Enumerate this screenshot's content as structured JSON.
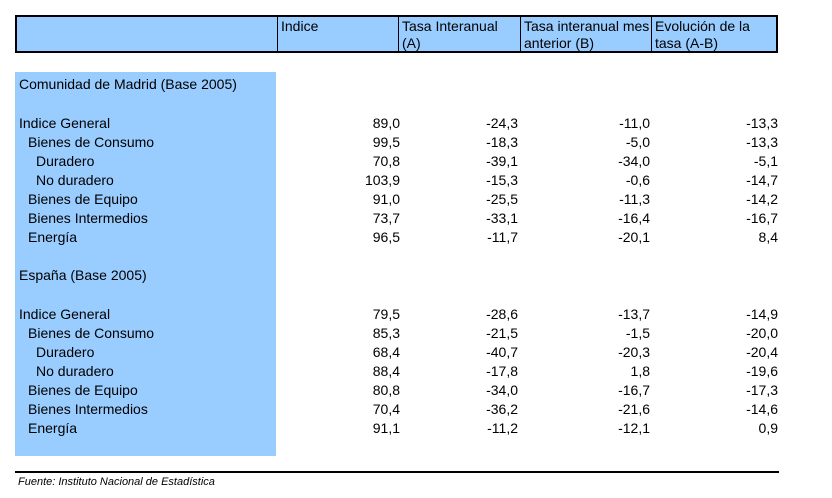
{
  "header": {
    "col_indice": "Indice",
    "col_a": "Tasa Interanual (A)",
    "col_b": "Tasa interanual mes anterior (B)",
    "col_ab": "Evolución de la tasa (A-B)"
  },
  "madrid": {
    "title": "Comunidad de Madrid (Base 2005)",
    "rows": [
      {
        "label": "Indice General",
        "indice": "89,0",
        "a": "-24,3",
        "b": "-11,0",
        "ab": "-13,3"
      },
      {
        "label": "Bienes de Consumo",
        "indice": "99,5",
        "a": "-18,3",
        "b": "-5,0",
        "ab": "-13,3"
      },
      {
        "label": "Duradero",
        "indice": "70,8",
        "a": "-39,1",
        "b": "-34,0",
        "ab": "-5,1"
      },
      {
        "label": "No duradero",
        "indice": "103,9",
        "a": "-15,3",
        "b": "-0,6",
        "ab": "-14,7"
      },
      {
        "label": "Bienes de Equipo",
        "indice": "91,0",
        "a": "-25,5",
        "b": "-11,3",
        "ab": "-14,2"
      },
      {
        "label": "Bienes Intermedios",
        "indice": "73,7",
        "a": "-33,1",
        "b": "-16,4",
        "ab": "-16,7"
      },
      {
        "label": "Energía",
        "indice": "96,5",
        "a": "-11,7",
        "b": "-20,1",
        "ab": "8,4"
      }
    ]
  },
  "espana": {
    "title": "España (Base 2005)",
    "rows": [
      {
        "label": "Indice General",
        "indice": "79,5",
        "a": "-28,6",
        "b": "-13,7",
        "ab": "-14,9"
      },
      {
        "label": "Bienes de Consumo",
        "indice": "85,3",
        "a": "-21,5",
        "b": "-1,5",
        "ab": "-20,0"
      },
      {
        "label": "Duradero",
        "indice": "68,4",
        "a": "-40,7",
        "b": "-20,3",
        "ab": "-20,4"
      },
      {
        "label": "No duradero",
        "indice": "88,4",
        "a": "-17,8",
        "b": "1,8",
        "ab": "-19,6"
      },
      {
        "label": "Bienes de Equipo",
        "indice": "80,8",
        "a": "-34,0",
        "b": "-16,7",
        "ab": "-17,3"
      },
      {
        "label": "Bienes Intermedios",
        "indice": "70,4",
        "a": "-36,2",
        "b": "-21,6",
        "ab": "-14,6"
      },
      {
        "label": "Energía",
        "indice": "91,1",
        "a": "-11,2",
        "b": "-12,1",
        "ab": "0,9"
      }
    ]
  },
  "source": "Fuente: Instituto Nacional de Estadística"
}
